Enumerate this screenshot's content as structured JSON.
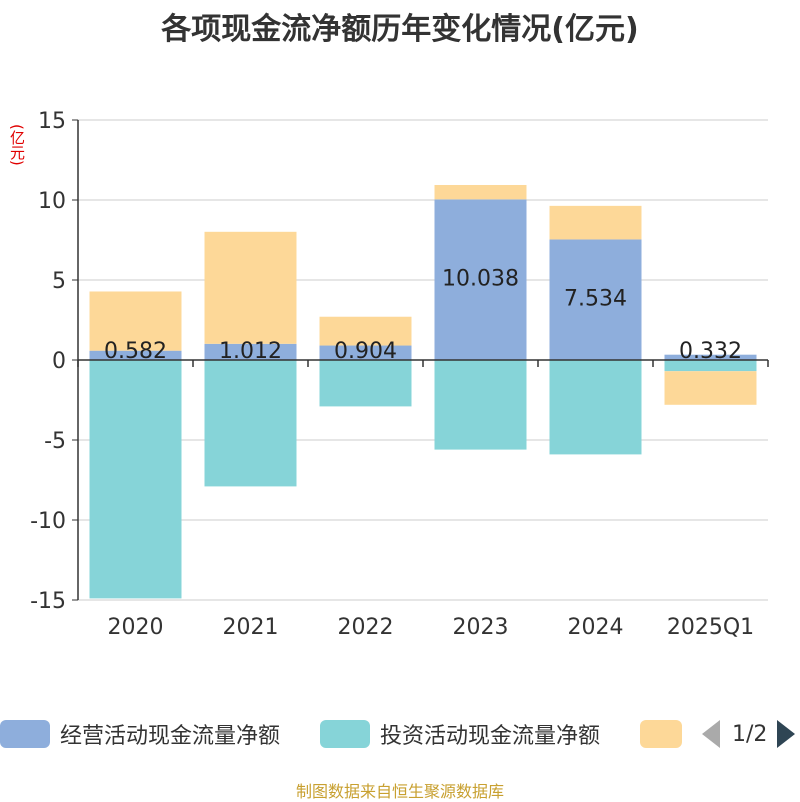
{
  "chart_data": {
    "type": "bar",
    "stacked": true,
    "title": "各项现金流净额历年变化情况(亿元)",
    "ylabel": "(亿元)",
    "ylim": [
      -15,
      15
    ],
    "yticks": [
      15,
      10,
      5,
      0,
      -5,
      -10,
      -15
    ],
    "categories": [
      "2020",
      "2021",
      "2022",
      "2023",
      "2024",
      "2025Q1"
    ],
    "series": [
      {
        "name": "经营活动现金流量净额",
        "color": "#8eaedc",
        "values": [
          0.582,
          1.012,
          0.904,
          10.038,
          7.534,
          0.332
        ],
        "labels": [
          "0.582",
          "1.012",
          "0.904",
          "10.038",
          "7.534",
          "0.332"
        ]
      },
      {
        "name": "投资活动现金流量净额",
        "color": "#86d4d8",
        "values": [
          -14.9,
          -7.9,
          -2.9,
          -5.6,
          -5.9,
          -0.7
        ]
      },
      {
        "name": "",
        "color": "#fdd898",
        "values": [
          3.7,
          7.0,
          1.8,
          0.9,
          2.1,
          -2.1
        ]
      }
    ],
    "grid": true,
    "legend": "bottom"
  },
  "legend": {
    "items": [
      {
        "label": "经营活动现金流量净额",
        "color": "#8eaedc"
      },
      {
        "label": "投资活动现金流量净额",
        "color": "#86d4d8"
      },
      {
        "label": "",
        "color": "#fdd898"
      }
    ],
    "page": "1/2"
  },
  "source": "制图数据来自恒生聚源数据库"
}
